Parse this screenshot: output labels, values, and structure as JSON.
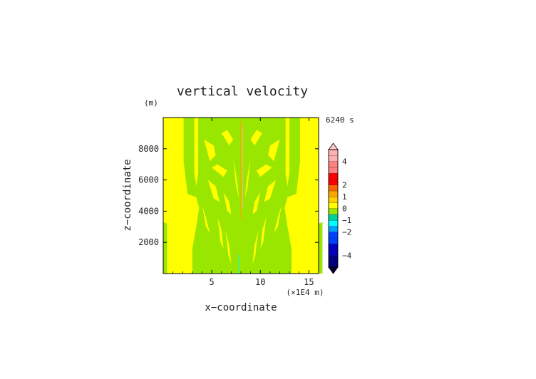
{
  "chart_data": {
    "type": "heatmap",
    "title": "vertical velocity",
    "xlabel": "x−coordinate",
    "ylabel": "z−coordinate",
    "x_unit": "(×1E4 m)",
    "y_unit": "(m)",
    "time_label": "6240 s",
    "xlim": [
      0,
      16
    ],
    "ylim": [
      0,
      10000
    ],
    "x_ticks": [
      "5",
      "10",
      "15"
    ],
    "x_tick_values": [
      5,
      10,
      15
    ],
    "y_ticks": [
      "2000",
      "4000",
      "6000",
      "8000"
    ],
    "y_tick_values": [
      2000,
      4000,
      6000,
      8000
    ],
    "field_summary": "mostly 0 to 0.5 (yellow) and −0.5 to 0 (light green) bands, symmetric about x≈8, thin positive/negative streaks near x≈7.9–8.1",
    "colorbar": {
      "levels": [
        -5,
        -4.5,
        -4,
        -3.5,
        -3,
        -2.5,
        -2,
        -1.5,
        -1,
        -0.5,
        0,
        0.5,
        1,
        1.5,
        2,
        2.5,
        3,
        3.5,
        4,
        4.5,
        5
      ],
      "labels": [
        "4",
        "2",
        "1",
        "0",
        "−1",
        "−2",
        "−4"
      ],
      "label_values": [
        4,
        2,
        1,
        0,
        -1,
        -2,
        -4
      ],
      "extend": "both"
    },
    "colors": {
      "yellow": "#ffff00",
      "light_green": "#99e600",
      "cyan": "#00ffff",
      "dark_blue": "#00007f",
      "red": "#ff0000",
      "pink": "#ffaaaa",
      "orange": "#ffa500"
    }
  }
}
